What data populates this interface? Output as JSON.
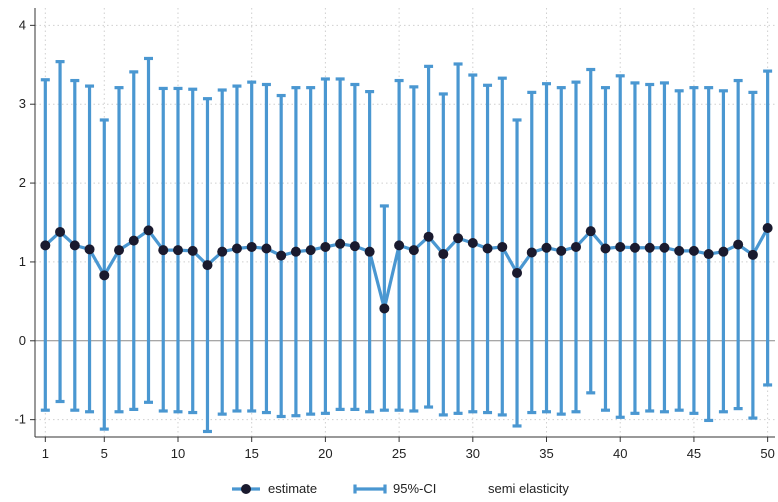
{
  "chart_data": {
    "type": "line",
    "x": [
      1,
      2,
      3,
      4,
      5,
      6,
      7,
      8,
      9,
      10,
      11,
      12,
      13,
      14,
      15,
      16,
      17,
      18,
      19,
      20,
      21,
      22,
      23,
      24,
      25,
      26,
      27,
      28,
      29,
      30,
      31,
      32,
      33,
      34,
      35,
      36,
      37,
      38,
      39,
      40,
      41,
      42,
      43,
      44,
      45,
      46,
      47,
      48,
      49,
      50
    ],
    "series": [
      {
        "name": "estimate",
        "color": "#1a1a2e",
        "values": [
          1.21,
          1.38,
          1.21,
          1.16,
          0.83,
          1.15,
          1.27,
          1.4,
          1.15,
          1.15,
          1.14,
          0.96,
          1.13,
          1.17,
          1.19,
          1.17,
          1.08,
          1.13,
          1.15,
          1.19,
          1.23,
          1.2,
          1.13,
          0.41,
          1.21,
          1.15,
          1.32,
          1.1,
          1.3,
          1.24,
          1.17,
          1.19,
          0.86,
          1.12,
          1.18,
          1.14,
          1.19,
          1.39,
          1.17,
          1.19,
          1.18,
          1.18,
          1.18,
          1.14,
          1.14,
          1.1,
          1.13,
          1.22,
          1.09,
          1.43
        ]
      },
      {
        "name": "95%-CI",
        "color": "#4a97d1",
        "upper": [
          3.31,
          3.54,
          3.3,
          3.23,
          2.8,
          3.21,
          3.41,
          3.58,
          3.2,
          3.2,
          3.19,
          3.07,
          3.18,
          3.23,
          3.28,
          3.25,
          3.11,
          3.21,
          3.21,
          3.32,
          3.32,
          3.25,
          3.16,
          1.71,
          3.3,
          3.22,
          3.48,
          3.13,
          3.51,
          3.37,
          3.24,
          3.33,
          2.8,
          3.15,
          3.26,
          3.21,
          3.28,
          3.44,
          3.21,
          3.36,
          3.27,
          3.25,
          3.27,
          3.17,
          3.21,
          3.21,
          3.17,
          3.3,
          3.15,
          3.42
        ],
        "lower": [
          -0.88,
          -0.77,
          -0.88,
          -0.9,
          -1.12,
          -0.9,
          -0.87,
          -0.78,
          -0.89,
          -0.9,
          -0.91,
          -1.15,
          -0.93,
          -0.89,
          -0.89,
          -0.91,
          -0.96,
          -0.95,
          -0.93,
          -0.92,
          -0.87,
          -0.87,
          -0.9,
          -0.88,
          -0.88,
          -0.89,
          -0.84,
          -0.94,
          -0.92,
          -0.9,
          -0.91,
          -0.94,
          -1.08,
          -0.91,
          -0.9,
          -0.93,
          -0.9,
          -0.66,
          -0.88,
          -0.97,
          -0.92,
          -0.89,
          -0.9,
          -0.88,
          -0.92,
          -1.01,
          -0.9,
          -0.86,
          -0.98,
          -0.56
        ]
      },
      {
        "name": "semi elasticity"
      }
    ],
    "xlim": [
      0.3,
      50.5
    ],
    "ylim": [
      -1.22,
      4.22
    ],
    "xticks": [
      1,
      5,
      10,
      15,
      20,
      25,
      30,
      35,
      40,
      45,
      50
    ],
    "yticks": [
      -1,
      0,
      1,
      2,
      3,
      4
    ],
    "grid": true,
    "legend_position": "bottom-center"
  }
}
